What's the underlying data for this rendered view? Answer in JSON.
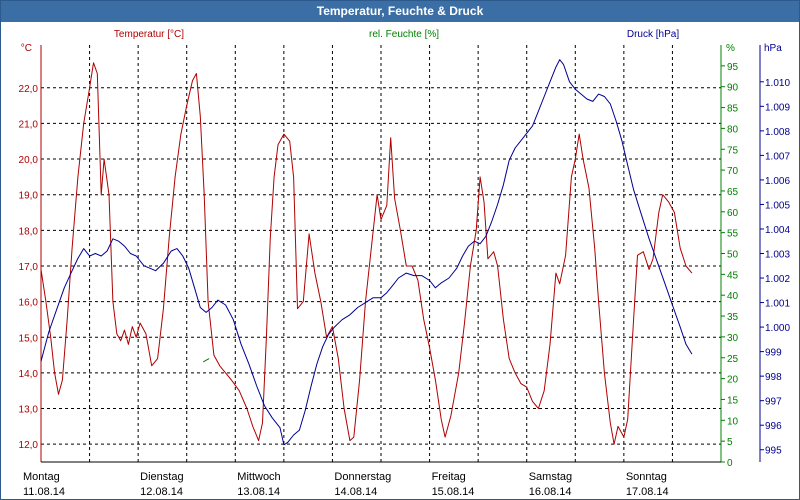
{
  "window": {
    "title": "Temperatur, Feuchte & Druck"
  },
  "colors": {
    "temperature": "#b00000",
    "humidity": "#008000",
    "pressure": "#000090",
    "grid": "#000000",
    "title_bg": "#3b6ea5"
  },
  "chart_data": {
    "type": "line",
    "title": "Temperatur, Feuchte & Druck",
    "x_unit": "days",
    "x_range": [
      0,
      7
    ],
    "x_tick_labels": [
      {
        "weekday": "Montag",
        "date": "11.08.14",
        "x": 0.0
      },
      {
        "weekday": "Dienstag",
        "date": "12.08.14",
        "x": 1.0
      },
      {
        "weekday": "Mittwoch",
        "date": "13.08.14",
        "x": 2.0
      },
      {
        "weekday": "Donnerstag",
        "date": "14.08.14",
        "x": 3.0
      },
      {
        "weekday": "Freitag",
        "date": "15.08.14",
        "x": 4.0
      },
      {
        "weekday": "Samstag",
        "date": "16.08.14",
        "x": 5.0
      },
      {
        "weekday": "Sonntag",
        "date": "17.08.14",
        "x": 6.0
      }
    ],
    "axes": {
      "temperature": {
        "label": "Temperatur [°C]",
        "unit": "°C",
        "range": [
          11.5,
          23.2
        ],
        "ticks": [
          "12,0",
          "13,0",
          "14,0",
          "15,0",
          "16,0",
          "17,0",
          "18,0",
          "19,0",
          "20,0",
          "21,0",
          "22,0"
        ],
        "tick_values": [
          12,
          13,
          14,
          15,
          16,
          17,
          18,
          19,
          20,
          21,
          22
        ]
      },
      "humidity": {
        "label": "rel. Feuchte [%]",
        "unit": "%",
        "range": [
          0,
          100
        ],
        "ticks": [
          "0",
          "5",
          "10",
          "15",
          "20",
          "25",
          "30",
          "35",
          "40",
          "45",
          "50",
          "55",
          "60",
          "65",
          "70",
          "75",
          "80",
          "85",
          "90",
          "95"
        ],
        "tick_values": [
          0,
          5,
          10,
          15,
          20,
          25,
          30,
          35,
          40,
          45,
          50,
          55,
          60,
          65,
          70,
          75,
          80,
          85,
          90,
          95
        ]
      },
      "pressure": {
        "label": "Druck [hPa]",
        "unit": "hPa",
        "range": [
          994.5,
          1011.5
        ],
        "ticks": [
          "995",
          "996",
          "997",
          "998",
          "999",
          "1.000",
          "1.001",
          "1.002",
          "1.003",
          "1.004",
          "1.005",
          "1.006",
          "1.007",
          "1.008",
          "1.009",
          "1.010"
        ],
        "tick_values": [
          995,
          996,
          997,
          998,
          999,
          1000,
          1001,
          1002,
          1003,
          1004,
          1005,
          1006,
          1007,
          1008,
          1009,
          1010
        ]
      }
    },
    "series": [
      {
        "name": "Temperatur",
        "axis": "temperature",
        "points": [
          [
            0.0,
            16.9
          ],
          [
            0.05,
            16.0
          ],
          [
            0.1,
            15.0
          ],
          [
            0.14,
            14.0
          ],
          [
            0.18,
            13.4
          ],
          [
            0.22,
            13.8
          ],
          [
            0.27,
            15.5
          ],
          [
            0.32,
            17.5
          ],
          [
            0.38,
            19.5
          ],
          [
            0.44,
            21.0
          ],
          [
            0.5,
            22.0
          ],
          [
            0.54,
            22.7
          ],
          [
            0.58,
            22.4
          ],
          [
            0.62,
            19.0
          ],
          [
            0.65,
            20.0
          ],
          [
            0.7,
            19.0
          ],
          [
            0.74,
            16.0
          ],
          [
            0.78,
            15.1
          ],
          [
            0.82,
            14.9
          ],
          [
            0.86,
            15.2
          ],
          [
            0.9,
            14.8
          ],
          [
            0.94,
            15.3
          ],
          [
            0.98,
            15.0
          ],
          [
            1.02,
            15.4
          ],
          [
            1.08,
            15.1
          ],
          [
            1.14,
            14.2
          ],
          [
            1.2,
            14.4
          ],
          [
            1.26,
            15.8
          ],
          [
            1.32,
            17.8
          ],
          [
            1.38,
            19.5
          ],
          [
            1.44,
            20.7
          ],
          [
            1.5,
            21.5
          ],
          [
            1.56,
            22.2
          ],
          [
            1.6,
            22.4
          ],
          [
            1.64,
            21.2
          ],
          [
            1.68,
            19.0
          ],
          [
            1.72,
            16.0
          ],
          [
            1.78,
            14.5
          ],
          [
            1.84,
            14.2
          ],
          [
            1.9,
            14.0
          ],
          [
            1.96,
            13.8
          ],
          [
            2.04,
            13.5
          ],
          [
            2.12,
            13.0
          ],
          [
            2.18,
            12.5
          ],
          [
            2.24,
            12.1
          ],
          [
            2.28,
            12.6
          ],
          [
            2.32,
            15.0
          ],
          [
            2.36,
            17.8
          ],
          [
            2.4,
            19.5
          ],
          [
            2.44,
            20.4
          ],
          [
            2.5,
            20.7
          ],
          [
            2.56,
            20.5
          ],
          [
            2.6,
            19.5
          ],
          [
            2.64,
            15.8
          ],
          [
            2.7,
            16.0
          ],
          [
            2.76,
            17.9
          ],
          [
            2.82,
            16.8
          ],
          [
            2.88,
            16.0
          ],
          [
            2.94,
            15.0
          ],
          [
            3.0,
            15.3
          ],
          [
            3.06,
            14.4
          ],
          [
            3.12,
            13.0
          ],
          [
            3.18,
            12.1
          ],
          [
            3.22,
            12.2
          ],
          [
            3.28,
            13.8
          ],
          [
            3.34,
            16.0
          ],
          [
            3.4,
            17.5
          ],
          [
            3.46,
            19.0
          ],
          [
            3.5,
            18.3
          ],
          [
            3.56,
            18.7
          ],
          [
            3.6,
            20.6
          ],
          [
            3.64,
            18.9
          ],
          [
            3.7,
            18.0
          ],
          [
            3.76,
            17.0
          ],
          [
            3.82,
            17.0
          ],
          [
            3.88,
            16.6
          ],
          [
            3.94,
            15.5
          ],
          [
            4.0,
            14.7
          ],
          [
            4.06,
            13.8
          ],
          [
            4.12,
            12.7
          ],
          [
            4.16,
            12.2
          ],
          [
            4.22,
            12.8
          ],
          [
            4.3,
            14.0
          ],
          [
            4.36,
            15.4
          ],
          [
            4.42,
            17.0
          ],
          [
            4.48,
            18.0
          ],
          [
            4.52,
            19.5
          ],
          [
            4.56,
            18.8
          ],
          [
            4.6,
            17.2
          ],
          [
            4.66,
            17.4
          ],
          [
            4.7,
            17.0
          ],
          [
            4.76,
            15.5
          ],
          [
            4.82,
            14.4
          ],
          [
            4.88,
            14.0
          ],
          [
            4.94,
            13.7
          ],
          [
            5.0,
            13.6
          ],
          [
            5.06,
            13.2
          ],
          [
            5.12,
            13.0
          ],
          [
            5.18,
            13.5
          ],
          [
            5.24,
            14.8
          ],
          [
            5.3,
            16.8
          ],
          [
            5.34,
            16.5
          ],
          [
            5.4,
            17.3
          ],
          [
            5.46,
            19.5
          ],
          [
            5.5,
            20.0
          ],
          [
            5.54,
            20.7
          ],
          [
            5.58,
            20.0
          ],
          [
            5.64,
            19.2
          ],
          [
            5.7,
            17.5
          ],
          [
            5.74,
            16.0
          ],
          [
            5.8,
            14.0
          ],
          [
            5.86,
            12.6
          ],
          [
            5.9,
            12.0
          ],
          [
            5.94,
            12.5
          ],
          [
            6.0,
            12.2
          ],
          [
            6.04,
            12.7
          ],
          [
            6.1,
            15.5
          ],
          [
            6.14,
            17.3
          ],
          [
            6.2,
            17.4
          ],
          [
            6.26,
            16.9
          ],
          [
            6.3,
            17.2
          ],
          [
            6.36,
            18.5
          ],
          [
            6.4,
            19.0
          ],
          [
            6.46,
            18.8
          ],
          [
            6.52,
            18.5
          ],
          [
            6.58,
            17.5
          ],
          [
            6.64,
            17.0
          ],
          [
            6.7,
            16.8
          ]
        ]
      },
      {
        "name": "rel. Feuchte",
        "axis": "humidity",
        "points": [
          [
            1.67,
            24.0
          ],
          [
            1.73,
            24.8
          ]
        ]
      },
      {
        "name": "Druck",
        "axis": "pressure",
        "points": [
          [
            0.0,
            998.6
          ],
          [
            0.08,
            999.8
          ],
          [
            0.16,
            1000.7
          ],
          [
            0.24,
            1001.6
          ],
          [
            0.32,
            1002.3
          ],
          [
            0.38,
            1002.8
          ],
          [
            0.44,
            1003.2
          ],
          [
            0.5,
            1002.9
          ],
          [
            0.56,
            1003.0
          ],
          [
            0.62,
            1002.9
          ],
          [
            0.68,
            1003.1
          ],
          [
            0.74,
            1003.6
          ],
          [
            0.8,
            1003.5
          ],
          [
            0.86,
            1003.3
          ],
          [
            0.92,
            1003.0
          ],
          [
            0.98,
            1002.9
          ],
          [
            1.06,
            1002.5
          ],
          [
            1.12,
            1002.4
          ],
          [
            1.18,
            1002.3
          ],
          [
            1.26,
            1002.6
          ],
          [
            1.34,
            1003.1
          ],
          [
            1.4,
            1003.2
          ],
          [
            1.46,
            1002.9
          ],
          [
            1.52,
            1002.4
          ],
          [
            1.58,
            1001.6
          ],
          [
            1.64,
            1000.8
          ],
          [
            1.7,
            1000.6
          ],
          [
            1.76,
            1000.8
          ],
          [
            1.82,
            1001.1
          ],
          [
            1.9,
            1000.9
          ],
          [
            1.98,
            1000.3
          ],
          [
            2.06,
            999.3
          ],
          [
            2.14,
            998.5
          ],
          [
            2.22,
            997.6
          ],
          [
            2.3,
            996.8
          ],
          [
            2.38,
            996.3
          ],
          [
            2.46,
            995.9
          ],
          [
            2.5,
            995.2
          ],
          [
            2.54,
            995.3
          ],
          [
            2.6,
            995.6
          ],
          [
            2.66,
            995.8
          ],
          [
            2.72,
            996.6
          ],
          [
            2.78,
            997.6
          ],
          [
            2.84,
            998.5
          ],
          [
            2.9,
            999.2
          ],
          [
            2.96,
            999.7
          ],
          [
            3.02,
            1000.0
          ],
          [
            3.1,
            1000.3
          ],
          [
            3.18,
            1000.5
          ],
          [
            3.26,
            1000.8
          ],
          [
            3.34,
            1001.0
          ],
          [
            3.42,
            1001.2
          ],
          [
            3.5,
            1001.2
          ],
          [
            3.56,
            1001.4
          ],
          [
            3.62,
            1001.7
          ],
          [
            3.68,
            1002.0
          ],
          [
            3.76,
            1002.2
          ],
          [
            3.84,
            1002.1
          ],
          [
            3.92,
            1002.1
          ],
          [
            4.0,
            1001.9
          ],
          [
            4.06,
            1001.6
          ],
          [
            4.12,
            1001.8
          ],
          [
            4.2,
            1002.0
          ],
          [
            4.28,
            1002.4
          ],
          [
            4.34,
            1002.9
          ],
          [
            4.4,
            1003.3
          ],
          [
            4.46,
            1003.5
          ],
          [
            4.52,
            1003.4
          ],
          [
            4.58,
            1003.7
          ],
          [
            4.64,
            1004.3
          ],
          [
            4.7,
            1005.0
          ],
          [
            4.76,
            1005.8
          ],
          [
            4.82,
            1006.8
          ],
          [
            4.88,
            1007.3
          ],
          [
            4.94,
            1007.6
          ],
          [
            5.0,
            1007.9
          ],
          [
            5.06,
            1008.2
          ],
          [
            5.12,
            1008.8
          ],
          [
            5.18,
            1009.4
          ],
          [
            5.24,
            1010.0
          ],
          [
            5.3,
            1010.6
          ],
          [
            5.34,
            1010.9
          ],
          [
            5.38,
            1010.7
          ],
          [
            5.44,
            1010.0
          ],
          [
            5.5,
            1009.7
          ],
          [
            5.56,
            1009.5
          ],
          [
            5.62,
            1009.3
          ],
          [
            5.68,
            1009.2
          ],
          [
            5.74,
            1009.5
          ],
          [
            5.8,
            1009.4
          ],
          [
            5.86,
            1009.1
          ],
          [
            5.92,
            1008.4
          ],
          [
            5.98,
            1007.6
          ],
          [
            6.04,
            1006.6
          ],
          [
            6.1,
            1005.6
          ],
          [
            6.18,
            1004.6
          ],
          [
            6.26,
            1003.6
          ],
          [
            6.34,
            1002.7
          ],
          [
            6.42,
            1001.8
          ],
          [
            6.5,
            1000.9
          ],
          [
            6.58,
            1000.0
          ],
          [
            6.64,
            999.3
          ],
          [
            6.7,
            998.9
          ]
        ]
      }
    ]
  }
}
